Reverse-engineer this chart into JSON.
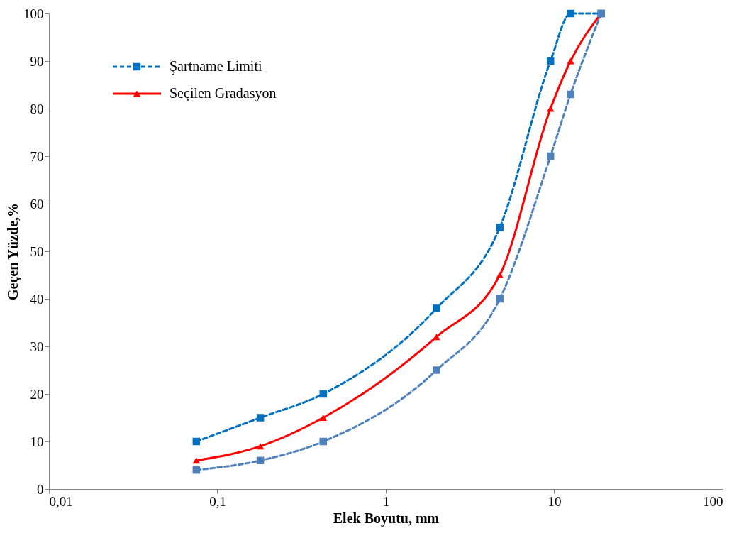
{
  "chart_data": {
    "type": "line",
    "xlabel": "Elek Boyutu, mm",
    "ylabel": "Geçen Yüzde,%",
    "log": "x",
    "xlim": [
      0.01,
      100
    ],
    "xticks": [
      {
        "value": 0.01,
        "label": "0,01"
      },
      {
        "value": 0.1,
        "label": "0,1"
      },
      1,
      10,
      100
    ],
    "ylim": [
      0,
      100
    ],
    "yticks": [
      0,
      10,
      20,
      30,
      40,
      50,
      60,
      70,
      80,
      90,
      100
    ],
    "grid": false,
    "legend": "top left",
    "series": [
      {
        "name": "Şartname Limiti",
        "color": "#0070c0",
        "marker": "square",
        "line_style": "dashed",
        "x": [
          0.075,
          0.18,
          0.425,
          2,
          4.75,
          9.5,
          12.5,
          19
        ],
        "values": [
          10,
          15,
          20,
          38,
          55,
          90,
          100,
          100
        ]
      },
      {
        "name": "Seçilen Gradasyon",
        "color": "#ff0000",
        "marker": "triangle",
        "line_style": "solid",
        "x": [
          0.075,
          0.18,
          0.425,
          2,
          4.75,
          9.5,
          12.5,
          19
        ],
        "values": [
          6,
          9,
          15,
          32,
          45,
          80,
          90,
          100
        ]
      },
      {
        "color": "#4f81bd",
        "marker": "square",
        "line_style": "dashed",
        "x": [
          0.075,
          0.18,
          0.425,
          2,
          4.75,
          9.5,
          12.5,
          19
        ],
        "values": [
          4,
          6,
          10,
          25,
          40,
          70,
          83,
          100
        ]
      }
    ]
  }
}
